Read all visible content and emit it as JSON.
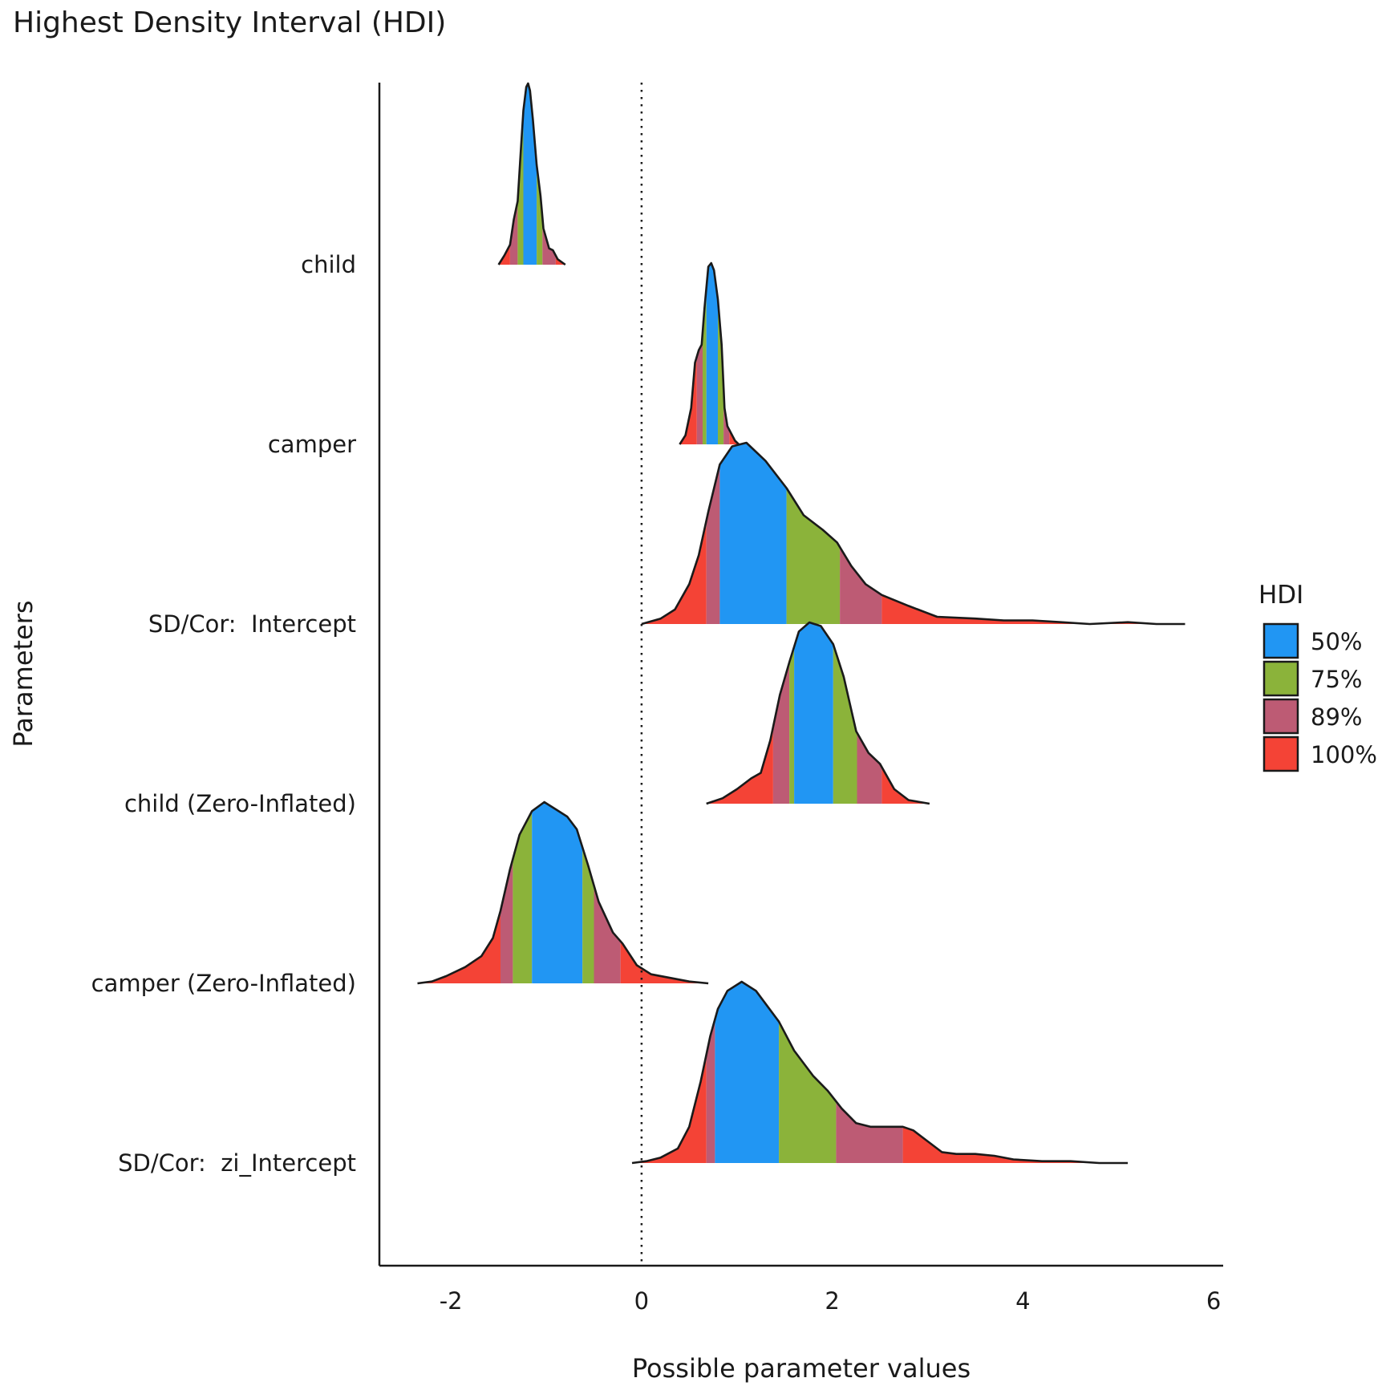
{
  "chart_data": {
    "type": "ridgeline",
    "title": "Highest Density Interval (HDI)",
    "xlabel": "Possible parameter values",
    "ylabel": "Parameters",
    "xlim": [
      -2.75,
      6.1
    ],
    "xticks": [
      -2,
      0,
      2,
      4,
      6
    ],
    "xtick_labels": [
      "-2",
      "0",
      "2",
      "4",
      "6"
    ],
    "reference_line": {
      "x": 0,
      "style": "dotted"
    },
    "grid": false,
    "legend": {
      "title": "HDI",
      "placement": "right",
      "items": [
        {
          "label": "50%",
          "color": "#2196F3"
        },
        {
          "label": "75%",
          "color": "#8BB33A"
        },
        {
          "label": "89%",
          "color": "#BD5B74"
        },
        {
          "label": "100%",
          "color": "#F44336"
        }
      ]
    },
    "series": [
      {
        "name": "child",
        "hdi": {
          "100": [
            -1.5,
            -0.8
          ],
          "89": [
            -1.38,
            -0.9
          ],
          "75": [
            -1.3,
            -1.04
          ],
          "50": [
            -1.24,
            -1.1
          ]
        },
        "density": [
          [
            -1.5,
            0.0
          ],
          [
            -1.44,
            0.05
          ],
          [
            -1.38,
            0.11
          ],
          [
            -1.34,
            0.25
          ],
          [
            -1.3,
            0.35
          ],
          [
            -1.27,
            0.6
          ],
          [
            -1.24,
            0.85
          ],
          [
            -1.21,
            0.98
          ],
          [
            -1.19,
            1.0
          ],
          [
            -1.17,
            0.96
          ],
          [
            -1.14,
            0.8
          ],
          [
            -1.1,
            0.55
          ],
          [
            -1.06,
            0.38
          ],
          [
            -1.03,
            0.2
          ],
          [
            -0.97,
            0.09
          ],
          [
            -0.93,
            0.08
          ],
          [
            -0.88,
            0.03
          ],
          [
            -0.8,
            0.0
          ]
        ]
      },
      {
        "name": "camper",
        "hdi": {
          "100": [
            0.4,
            1.02
          ],
          "89": [
            0.58,
            0.92
          ],
          "75": [
            0.64,
            0.86
          ],
          "50": [
            0.68,
            0.8
          ]
        },
        "density": [
          [
            0.4,
            0.0
          ],
          [
            0.46,
            0.05
          ],
          [
            0.52,
            0.2
          ],
          [
            0.56,
            0.45
          ],
          [
            0.6,
            0.52
          ],
          [
            0.63,
            0.55
          ],
          [
            0.66,
            0.75
          ],
          [
            0.7,
            0.98
          ],
          [
            0.73,
            1.0
          ],
          [
            0.76,
            0.96
          ],
          [
            0.8,
            0.8
          ],
          [
            0.84,
            0.55
          ],
          [
            0.87,
            0.2
          ],
          [
            0.9,
            0.1
          ],
          [
            0.94,
            0.06
          ],
          [
            0.98,
            0.02
          ],
          [
            1.02,
            0.0
          ]
        ]
      },
      {
        "name": "SD/Cor:  Intercept",
        "hdi": {
          "100": [
            0.0,
            5.7
          ],
          "89": [
            0.68,
            2.52
          ],
          "75": [
            0.82,
            2.08
          ],
          "50": [
            0.82,
            1.52
          ]
        },
        "density": [
          [
            0.0,
            0.0
          ],
          [
            0.2,
            0.03
          ],
          [
            0.35,
            0.08
          ],
          [
            0.5,
            0.22
          ],
          [
            0.6,
            0.38
          ],
          [
            0.7,
            0.62
          ],
          [
            0.82,
            0.88
          ],
          [
            0.95,
            0.98
          ],
          [
            1.1,
            1.0
          ],
          [
            1.3,
            0.9
          ],
          [
            1.52,
            0.75
          ],
          [
            1.7,
            0.6
          ],
          [
            1.9,
            0.52
          ],
          [
            2.05,
            0.45
          ],
          [
            2.2,
            0.32
          ],
          [
            2.35,
            0.22
          ],
          [
            2.52,
            0.16
          ],
          [
            2.8,
            0.1
          ],
          [
            3.1,
            0.04
          ],
          [
            3.5,
            0.03
          ],
          [
            3.8,
            0.02
          ],
          [
            4.1,
            0.02
          ],
          [
            4.4,
            0.01
          ],
          [
            4.7,
            0.0
          ],
          [
            5.1,
            0.01
          ],
          [
            5.4,
            0.0
          ],
          [
            5.7,
            0.0
          ]
        ]
      },
      {
        "name": "child (Zero-Inflated)",
        "hdi": {
          "100": [
            0.68,
            3.02
          ],
          "89": [
            1.38,
            2.52
          ],
          "75": [
            1.55,
            2.26
          ],
          "50": [
            1.6,
            2.01
          ]
        },
        "density": [
          [
            0.68,
            0.0
          ],
          [
            0.85,
            0.03
          ],
          [
            1.0,
            0.08
          ],
          [
            1.15,
            0.14
          ],
          [
            1.25,
            0.17
          ],
          [
            1.35,
            0.35
          ],
          [
            1.45,
            0.6
          ],
          [
            1.55,
            0.78
          ],
          [
            1.65,
            0.95
          ],
          [
            1.76,
            1.0
          ],
          [
            1.88,
            0.98
          ],
          [
            2.01,
            0.88
          ],
          [
            2.12,
            0.7
          ],
          [
            2.25,
            0.4
          ],
          [
            2.38,
            0.28
          ],
          [
            2.5,
            0.22
          ],
          [
            2.65,
            0.08
          ],
          [
            2.8,
            0.02
          ],
          [
            3.02,
            0.0
          ]
        ]
      },
      {
        "name": "camper (Zero-Inflated)",
        "hdi": {
          "100": [
            -2.35,
            0.7
          ],
          "89": [
            -1.48,
            -0.22
          ],
          "75": [
            -1.35,
            -0.5
          ],
          "50": [
            -1.15,
            -0.62
          ]
        },
        "density": [
          [
            -2.35,
            0.0
          ],
          [
            -2.2,
            0.01
          ],
          [
            -2.05,
            0.04
          ],
          [
            -1.85,
            0.09
          ],
          [
            -1.68,
            0.15
          ],
          [
            -1.56,
            0.25
          ],
          [
            -1.48,
            0.4
          ],
          [
            -1.38,
            0.63
          ],
          [
            -1.28,
            0.82
          ],
          [
            -1.15,
            0.95
          ],
          [
            -1.02,
            1.0
          ],
          [
            -0.9,
            0.96
          ],
          [
            -0.78,
            0.92
          ],
          [
            -0.68,
            0.85
          ],
          [
            -0.56,
            0.65
          ],
          [
            -0.45,
            0.45
          ],
          [
            -0.3,
            0.28
          ],
          [
            -0.2,
            0.22
          ],
          [
            -0.05,
            0.1
          ],
          [
            0.1,
            0.05
          ],
          [
            0.3,
            0.03
          ],
          [
            0.5,
            0.01
          ],
          [
            0.7,
            0.0
          ]
        ]
      },
      {
        "name": "SD/Cor:  zi_Intercept",
        "hdi": {
          "100": [
            -0.1,
            5.1
          ],
          "89": [
            0.68,
            2.74
          ],
          "75": [
            0.77,
            2.04
          ],
          "50": [
            0.77,
            1.44
          ]
        },
        "density": [
          [
            -0.1,
            0.0
          ],
          [
            0.05,
            0.01
          ],
          [
            0.2,
            0.03
          ],
          [
            0.38,
            0.08
          ],
          [
            0.5,
            0.2
          ],
          [
            0.62,
            0.45
          ],
          [
            0.72,
            0.7
          ],
          [
            0.8,
            0.85
          ],
          [
            0.9,
            0.95
          ],
          [
            1.05,
            1.0
          ],
          [
            1.2,
            0.95
          ],
          [
            1.44,
            0.78
          ],
          [
            1.6,
            0.62
          ],
          [
            1.8,
            0.48
          ],
          [
            1.95,
            0.4
          ],
          [
            2.1,
            0.3
          ],
          [
            2.25,
            0.22
          ],
          [
            2.4,
            0.2
          ],
          [
            2.6,
            0.2
          ],
          [
            2.74,
            0.2
          ],
          [
            2.85,
            0.18
          ],
          [
            3.0,
            0.12
          ],
          [
            3.15,
            0.06
          ],
          [
            3.3,
            0.05
          ],
          [
            3.5,
            0.05
          ],
          [
            3.7,
            0.04
          ],
          [
            3.9,
            0.02
          ],
          [
            4.2,
            0.01
          ],
          [
            4.5,
            0.01
          ],
          [
            4.8,
            0.0
          ],
          [
            5.1,
            0.0
          ]
        ]
      }
    ]
  }
}
